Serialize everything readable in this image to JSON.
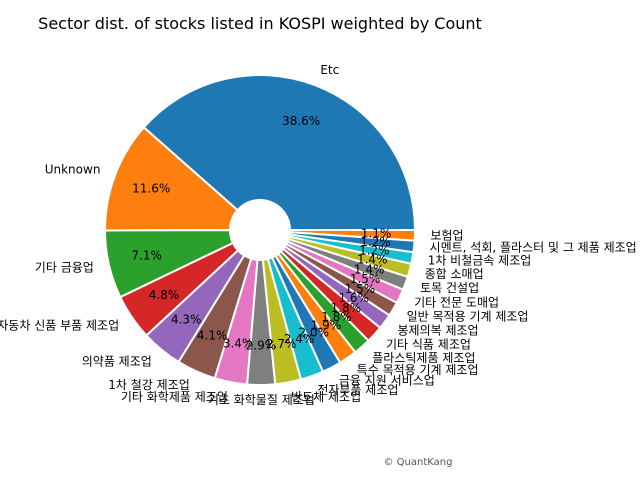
{
  "chart_data": {
    "type": "pie",
    "title": "Sector dist. of stocks listed in KOSPI weighted by Count",
    "slices": [
      {
        "label": "Etc",
        "value": 38.6,
        "pct_label": "38.6%",
        "color": "#1f77b4"
      },
      {
        "label": "Unknown",
        "value": 11.6,
        "pct_label": "11.6%",
        "color": "#ff7f0e"
      },
      {
        "label": "기타 금융업",
        "value": 7.1,
        "pct_label": "7.1%",
        "color": "#2ca02c"
      },
      {
        "label": "자동차 신품 부품 제조업",
        "value": 4.8,
        "pct_label": "4.8%",
        "color": "#d62728"
      },
      {
        "label": "의약품 제조업",
        "value": 4.3,
        "pct_label": "4.3%",
        "color": "#9467bd"
      },
      {
        "label": "1차 철강 제조업",
        "value": 4.1,
        "pct_label": "4.1%",
        "color": "#8c564b"
      },
      {
        "label": "기타 화학제품 제조업",
        "value": 3.4,
        "pct_label": "3.4%",
        "color": "#e377c2"
      },
      {
        "label": "기초 화학물질 제조업",
        "value": 2.9,
        "pct_label": "2.9%",
        "color": "#7f7f7f"
      },
      {
        "label": "반도체 제조업",
        "value": 2.7,
        "pct_label": "2.7%",
        "color": "#bcbd22"
      },
      {
        "label": "전자부품 제조업",
        "value": 2.4,
        "pct_label": "2.4%",
        "color": "#17becf"
      },
      {
        "label": "금융 지원 서비스업",
        "value": 2.0,
        "pct_label": "2.0%",
        "color": "#1f77b4"
      },
      {
        "label": "특수 목적용 기계 제조업",
        "value": 1.9,
        "pct_label": "1.9%",
        "color": "#ff7f0e"
      },
      {
        "label": "플라스틱제품 제조업",
        "value": 1.8,
        "pct_label": "1.8%",
        "color": "#2ca02c"
      },
      {
        "label": "기타 식품 제조업",
        "value": 1.8,
        "pct_label": "1.8%",
        "color": "#d62728"
      },
      {
        "label": "봉제의복 제조업",
        "value": 1.6,
        "pct_label": "1.6%",
        "color": "#9467bd"
      },
      {
        "label": "일반 목적용 기계 제조업",
        "value": 1.5,
        "pct_label": "1.5%",
        "color": "#8c564b"
      },
      {
        "label": "기타 전문 도매업",
        "value": 1.5,
        "pct_label": "1.5%",
        "color": "#e377c2"
      },
      {
        "label": "토목 건설업",
        "value": 1.4,
        "pct_label": "1.4%",
        "color": "#7f7f7f"
      },
      {
        "label": "종합 소매업",
        "value": 1.4,
        "pct_label": "1.4%",
        "color": "#bcbd22"
      },
      {
        "label": "1차 비철금속 제조업",
        "value": 1.2,
        "pct_label": "1.2%",
        "color": "#17becf"
      },
      {
        "label": "시멘트, 석회, 플라스터 및 그 제품 제조업",
        "value": 1.2,
        "pct_label": "1.2%",
        "color": "#1f77b4"
      },
      {
        "label": "보험업",
        "value": 1.1,
        "pct_label": "1.1%",
        "color": "#ff7f0e"
      }
    ]
  },
  "watermark": "© QuantKang"
}
